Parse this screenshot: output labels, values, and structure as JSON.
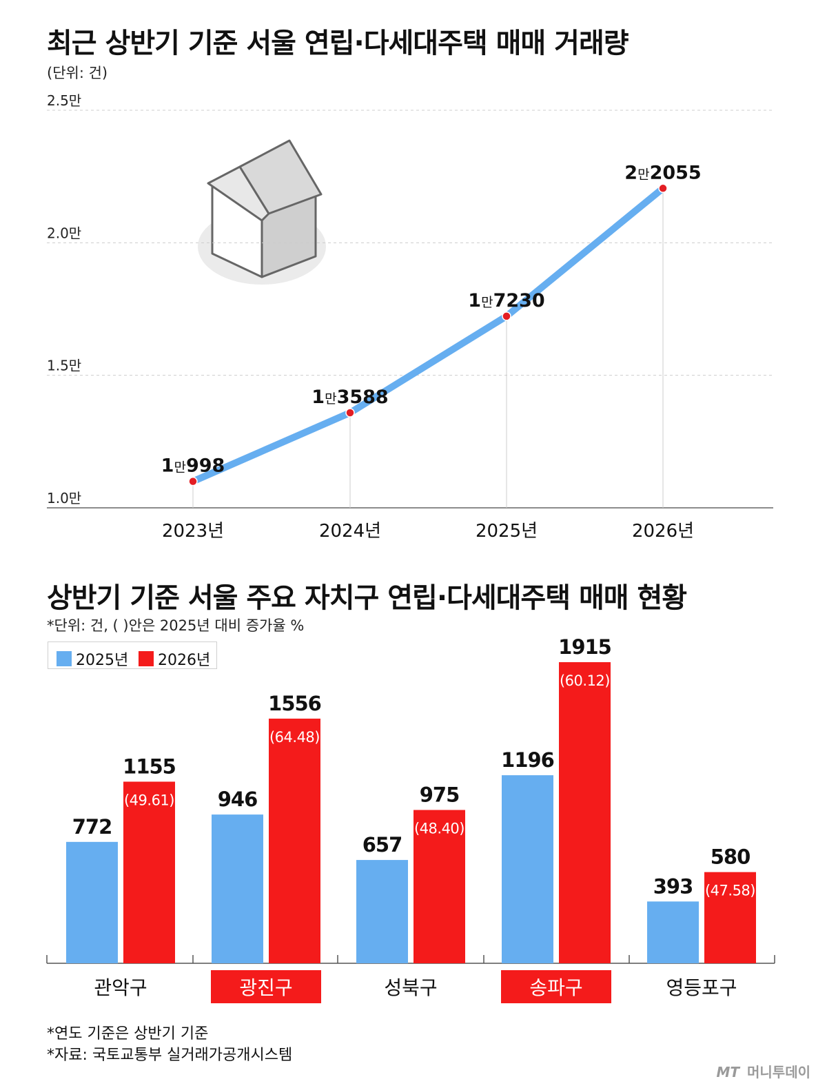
{
  "colors": {
    "line": "#66aef0",
    "point": "#e31e24",
    "bar_2025": "#66aef0",
    "bar_2026": "#f41b1b",
    "grid": "#cccccc",
    "highlight_label_bg": "#f41b1b"
  },
  "icons": [
    "house-icon"
  ],
  "chart_data": [
    {
      "type": "line",
      "title": "최근 상반기 기준 서울 연립·다세대주택 매매 거래량",
      "unit_note": "(단위: 건)",
      "x": [
        "2023년",
        "2024년",
        "2025년",
        "2026년"
      ],
      "values": [
        10998,
        13588,
        17230,
        22055
      ],
      "data_labels": [
        {
          "man": "1",
          "unit": "만",
          "rest": "998"
        },
        {
          "man": "1",
          "unit": "만",
          "rest": "3588"
        },
        {
          "man": "1",
          "unit": "만",
          "rest": "7230"
        },
        {
          "man": "2",
          "unit": "만",
          "rest": "2055"
        }
      ],
      "ylim": [
        10000,
        25000
      ],
      "yticks": [
        10000,
        15000,
        20000,
        25000
      ],
      "ytick_labels": [
        "1.0만",
        "1.5만",
        "2.0만",
        "2.5만"
      ],
      "grid": true
    },
    {
      "type": "bar",
      "title": "상반기 기준 서울 주요 자치구 연립·다세대주택 매매 현황",
      "unit_note": "*단위: 건, ( )안은 2025년 대비 증가율 %",
      "legend_position": "top-left",
      "categories": [
        "관악구",
        "광진구",
        "성북구",
        "송파구",
        "영등포구"
      ],
      "highlighted_categories": [
        "광진구",
        "송파구"
      ],
      "series": [
        {
          "name": "2025년",
          "values": [
            772,
            946,
            657,
            1196,
            393
          ]
        },
        {
          "name": "2026년",
          "values": [
            1155,
            1556,
            975,
            1915,
            580
          ]
        }
      ],
      "growth_labels": [
        "(49.61)",
        "(64.48)",
        "(48.40)",
        "(60.12)",
        "(47.58)"
      ],
      "ylim": [
        0,
        1915
      ]
    }
  ],
  "footnotes": [
    "*연도 기준은 상반기 기준",
    "*자료: 국토교통부 실거래가공개시스템"
  ],
  "credit": {
    "mark": "MT",
    "name": "머니투데이"
  }
}
